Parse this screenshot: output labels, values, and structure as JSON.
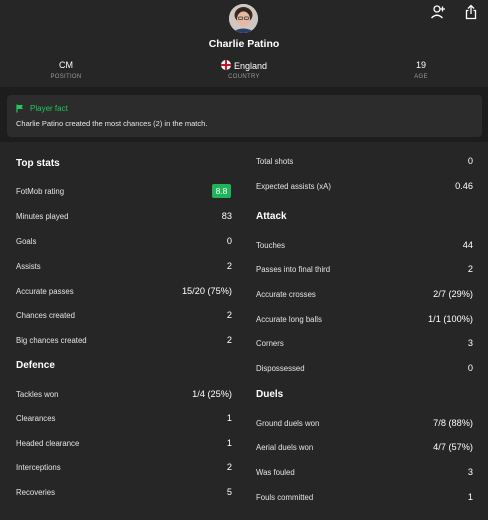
{
  "player": {
    "name": "Charlie Patino",
    "position_value": "CM",
    "position_label": "POSITION",
    "country_value": "England",
    "country_label": "COUNTRY",
    "age_value": "19",
    "age_label": "AGE"
  },
  "icons": {
    "follow": "person-add-icon",
    "share": "share-icon",
    "fact": "flag-icon",
    "country_flag": "england-flag-icon"
  },
  "colors": {
    "accent_green": "#20c95b",
    "rating_badge": "#1fb35a",
    "background": "#1d1d1d",
    "panel": "#262626"
  },
  "fact": {
    "title": "Player fact",
    "text": "Charlie Patino created the most chances (2) in the match."
  },
  "left": {
    "top_stats": {
      "title": "Top stats",
      "rows": [
        {
          "label": "FotMob rating",
          "value": "8.8"
        },
        {
          "label": "Minutes played",
          "value": "83"
        },
        {
          "label": "Goals",
          "value": "0"
        },
        {
          "label": "Assists",
          "value": "2"
        },
        {
          "label": "Accurate passes",
          "value": "15/20 (75%)"
        },
        {
          "label": "Chances created",
          "value": "2"
        },
        {
          "label": "Big chances created",
          "value": "2"
        }
      ]
    },
    "defence": {
      "title": "Defence",
      "rows": [
        {
          "label": "Tackles won",
          "value": "1/4 (25%)"
        },
        {
          "label": "Clearances",
          "value": "1"
        },
        {
          "label": "Headed clearance",
          "value": "1"
        },
        {
          "label": "Interceptions",
          "value": "2"
        },
        {
          "label": "Recoveries",
          "value": "5"
        }
      ]
    }
  },
  "right": {
    "misc": {
      "rows": [
        {
          "label": "Total shots",
          "value": "0"
        },
        {
          "label": "Expected assists (xA)",
          "value": "0.46"
        }
      ]
    },
    "attack": {
      "title": "Attack",
      "rows": [
        {
          "label": "Touches",
          "value": "44"
        },
        {
          "label": "Passes into final third",
          "value": "2"
        },
        {
          "label": "Accurate crosses",
          "value": "2/7 (29%)"
        },
        {
          "label": "Accurate long balls",
          "value": "1/1 (100%)"
        },
        {
          "label": "Corners",
          "value": "3"
        },
        {
          "label": "Dispossessed",
          "value": "0"
        }
      ]
    },
    "duels": {
      "title": "Duels",
      "rows": [
        {
          "label": "Ground duels won",
          "value": "7/8 (88%)"
        },
        {
          "label": "Aerial duels won",
          "value": "4/7 (57%)"
        },
        {
          "label": "Was fouled",
          "value": "3"
        },
        {
          "label": "Fouls committed",
          "value": "1"
        }
      ]
    }
  }
}
